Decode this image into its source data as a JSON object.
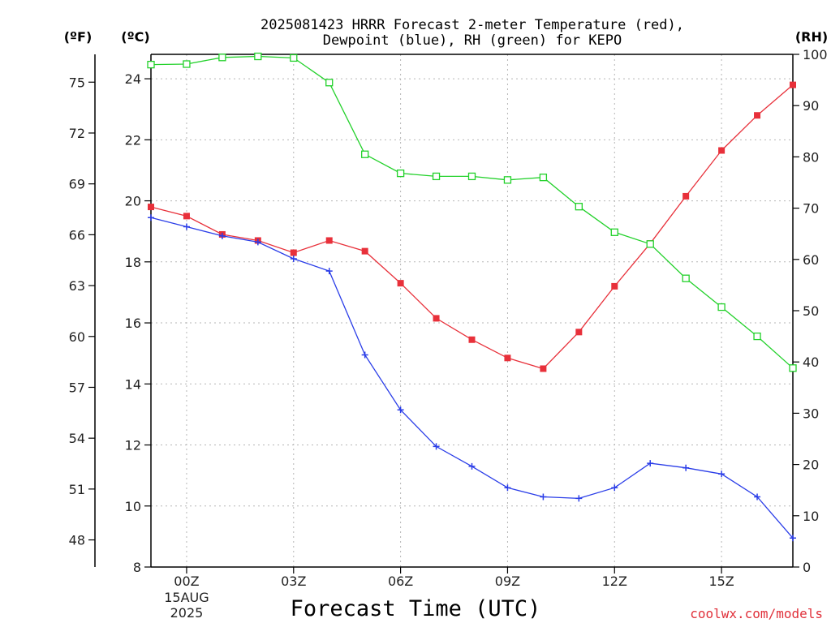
{
  "chart_data": {
    "type": "line",
    "title_lines": [
      "2025081423 HRRR Forecast 2-meter Temperature (red),",
      "Dewpoint (blue), RH (green) for KEPO"
    ],
    "xlabel": "Forecast Time (UTC)",
    "x_hours": [
      -1,
      0,
      1,
      2,
      3,
      4,
      5,
      6,
      7,
      8,
      9,
      10,
      11,
      12,
      13,
      14,
      15,
      16,
      17
    ],
    "x_ticks": [
      {
        "hour": 0,
        "label": "00Z",
        "sub1": "15AUG",
        "sub2": "2025"
      },
      {
        "hour": 3,
        "label": "03Z"
      },
      {
        "hour": 6,
        "label": "06Z"
      },
      {
        "hour": 9,
        "label": "09Z"
      },
      {
        "hour": 12,
        "label": "12Z"
      },
      {
        "hour": 15,
        "label": "15Z"
      }
    ],
    "xlim": [
      -1,
      17
    ],
    "y_left_c": {
      "unit": "(ºC)",
      "ticks": [
        "8",
        "10",
        "12",
        "14",
        "16",
        "18",
        "20",
        "22",
        "24"
      ],
      "ylim": [
        8,
        24.8
      ]
    },
    "y_left_f": {
      "unit": "(ºF)",
      "ticks": [
        "48",
        "51",
        "54",
        "57",
        "60",
        "63",
        "66",
        "69",
        "72",
        "75"
      ]
    },
    "y_right_rh": {
      "unit": "(RH)",
      "ticks": [
        "0",
        "10",
        "20",
        "30",
        "40",
        "50",
        "60",
        "70",
        "80",
        "90",
        "100"
      ],
      "ylim": [
        0,
        100
      ]
    },
    "series": [
      {
        "name": "Temperature",
        "axis": "c",
        "color": "#e8303a",
        "marker": "filled-square",
        "values": [
          19.8,
          19.5,
          18.9,
          18.7,
          18.3,
          18.7,
          18.35,
          17.3,
          16.15,
          15.45,
          14.85,
          14.5,
          15.7,
          17.2,
          18.6,
          20.15,
          21.65,
          22.8,
          23.8
        ]
      },
      {
        "name": "Dewpoint",
        "axis": "c",
        "color": "#2a3de8",
        "marker": "plus",
        "values": [
          19.45,
          19.15,
          18.85,
          18.65,
          18.1,
          17.7,
          14.95,
          13.15,
          11.95,
          11.3,
          10.6,
          10.3,
          10.25,
          10.6,
          11.4,
          11.25,
          11.05,
          10.3,
          8.95
        ]
      },
      {
        "name": "RH",
        "axis": "rh",
        "color": "#22d12a",
        "marker": "open-square",
        "values": [
          98,
          98.1,
          99.4,
          99.6,
          99.3,
          94.5,
          80.5,
          76.8,
          76.2,
          76.2,
          75.5,
          76,
          70.3,
          65.3,
          63,
          56.3,
          50.7,
          45,
          38.8
        ]
      }
    ]
  },
  "credit": "coolwx.com/models"
}
